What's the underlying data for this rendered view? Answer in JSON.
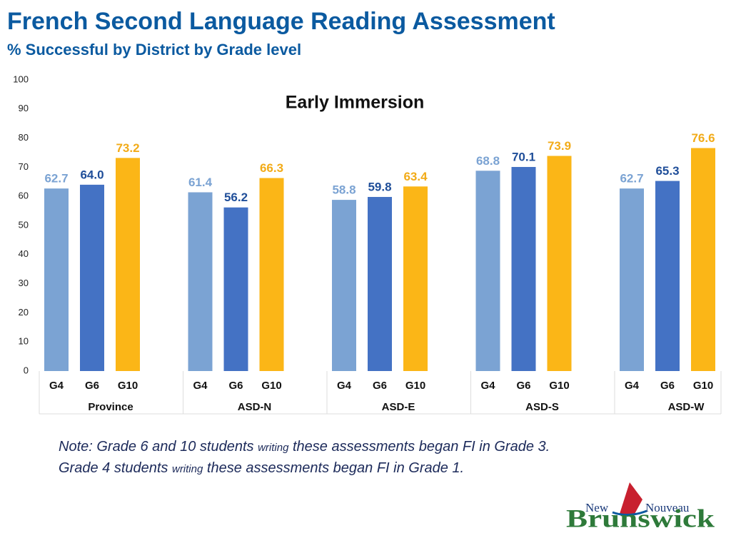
{
  "chart_data": {
    "type": "bar",
    "title": "French Second Language Reading Assessment",
    "subtitle": "% Successful by District by Grade level",
    "chart_title": "Early Immersion",
    "categories": [
      "Province",
      "ASD-N",
      "ASD-E",
      "ASD-S",
      "ASD-W"
    ],
    "series": [
      {
        "name": "G4",
        "color": "#7ba3d3",
        "label_color": "#7ba3d3",
        "values": [
          62.7,
          61.4,
          58.8,
          68.8,
          62.7
        ]
      },
      {
        "name": "G6",
        "color": "#4472c4",
        "label_color": "#1f4e99",
        "values": [
          64.0,
          56.2,
          59.8,
          70.1,
          65.3
        ],
        "value_labels": [
          "64.0",
          "56.2",
          "59.8",
          "70.1",
          "65.3"
        ]
      },
      {
        "name": "G10",
        "color": "#fbb617",
        "label_color": "#f2ab18",
        "values": [
          73.2,
          66.3,
          63.4,
          73.9,
          76.6
        ]
      }
    ],
    "ylim": [
      0,
      100
    ],
    "yticks": [
      0,
      10,
      20,
      30,
      40,
      50,
      60,
      70,
      80,
      90,
      100
    ],
    "grid": false
  },
  "note": {
    "line1": [
      "Note: Grade 6 and 10 students ",
      "writing",
      " these assessments began FI in Grade 3."
    ],
    "line2": [
      "Grade 4 students ",
      "writing",
      " these assessments began FI in Grade 1."
    ]
  },
  "logo": {
    "top_left": "New",
    "top_right": "Nouveau",
    "name": "Brunswick"
  }
}
